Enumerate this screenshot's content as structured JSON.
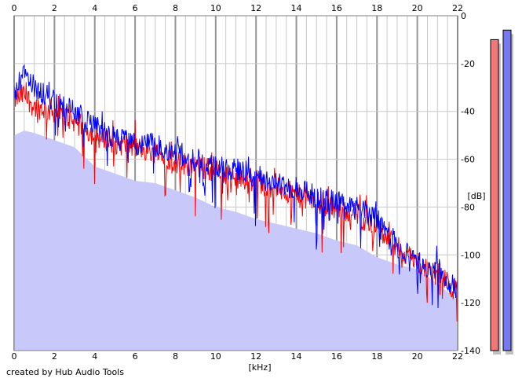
{
  "footer": {
    "credit": "created by Hub Audio Tools"
  },
  "colors": {
    "background": "#ffffff",
    "fill": "#c8c8fa",
    "grid_minor": "#c8c8c8",
    "grid_major": "#969696",
    "left_channel": "#ff0000",
    "right_channel": "#0000ff",
    "meter_left": "#f07878",
    "meter_right": "#7878f0"
  },
  "chart_data": {
    "type": "line",
    "title": "",
    "xlabel": "[kHz]",
    "ylabel": "[dB]",
    "xlim": [
      0,
      22
    ],
    "ylim": [
      -140,
      0
    ],
    "x_ticks": [
      0,
      2,
      4,
      6,
      8,
      10,
      12,
      14,
      16,
      18,
      20,
      22
    ],
    "y_ticks": [
      0,
      -20,
      -40,
      -60,
      -80,
      -100,
      -120,
      -140
    ],
    "grid": true,
    "legend": "none",
    "envelope": {
      "x": [
        0,
        0.5,
        1,
        2,
        3,
        4,
        5,
        6,
        7,
        8,
        9,
        10,
        11,
        12,
        13,
        14,
        15,
        16,
        17,
        18,
        19,
        20,
        21,
        22
      ],
      "y": [
        -50,
        -48,
        -49,
        -52,
        -55,
        -63,
        -66,
        -69,
        -70,
        -73,
        -76,
        -80,
        -82,
        -85,
        -87,
        -89,
        -91,
        -94,
        -96,
        -101,
        -104,
        -106,
        -112,
        -119
      ]
    },
    "series": [
      {
        "color": "#ff0000",
        "x": [
          0,
          0.5,
          1,
          2,
          3,
          4,
          5,
          6,
          7,
          8,
          9,
          10,
          11,
          12,
          13,
          14,
          15,
          16,
          17,
          18,
          19,
          20,
          21,
          22
        ],
        "y": [
          -35,
          -33,
          -38,
          -40,
          -44,
          -50,
          -53,
          -55,
          -57,
          -61,
          -63,
          -65,
          -68,
          -69,
          -72,
          -75,
          -78,
          -80,
          -83,
          -89,
          -97,
          -103,
          -108,
          -116
        ]
      },
      {
        "color": "#0000ff",
        "x": [
          0,
          0.5,
          1,
          2,
          3,
          4,
          5,
          6,
          7,
          8,
          9,
          10,
          11,
          12,
          13,
          14,
          15,
          16,
          17,
          18,
          19,
          20,
          21,
          22
        ],
        "y": [
          -33,
          -25,
          -30,
          -36,
          -40,
          -47,
          -51,
          -54,
          -54,
          -57,
          -60,
          -63,
          -64,
          -67,
          -70,
          -72,
          -76,
          -78,
          -80,
          -85,
          -96,
          -102,
          -107,
          -114
        ]
      }
    ],
    "level_meters": [
      {
        "color": "#f07878",
        "level_db": -10
      },
      {
        "color": "#7878f0",
        "level_db": -6
      }
    ]
  }
}
